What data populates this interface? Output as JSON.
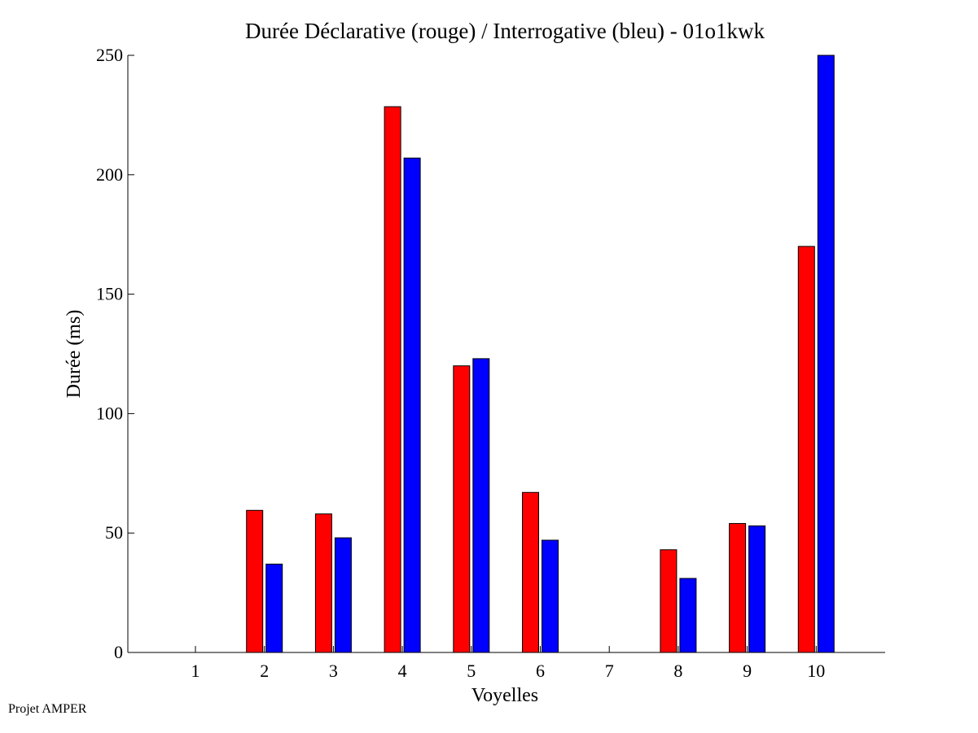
{
  "chart_data": {
    "type": "bar",
    "title": "Durée Déclarative (rouge) / Interrogative (bleu) - 01o1kwk",
    "xlabel": "Voyelles",
    "ylabel": "Durée (ms)",
    "categories": [
      "1",
      "2",
      "3",
      "4",
      "5",
      "6",
      "7",
      "8",
      "9",
      "10"
    ],
    "ylim": [
      0,
      250
    ],
    "yticks": [
      0,
      50,
      100,
      150,
      200,
      250
    ],
    "grid": false,
    "series": [
      {
        "color": "#ff0000",
        "values": [
          0,
          59.5,
          58,
          228.5,
          120,
          67,
          0,
          43,
          54,
          170
        ]
      },
      {
        "color": "#0000ff",
        "values": [
          0,
          37,
          48,
          207,
          123,
          47,
          0,
          31,
          53,
          250
        ]
      }
    ]
  },
  "footer": {
    "text": "Projet AMPER"
  }
}
